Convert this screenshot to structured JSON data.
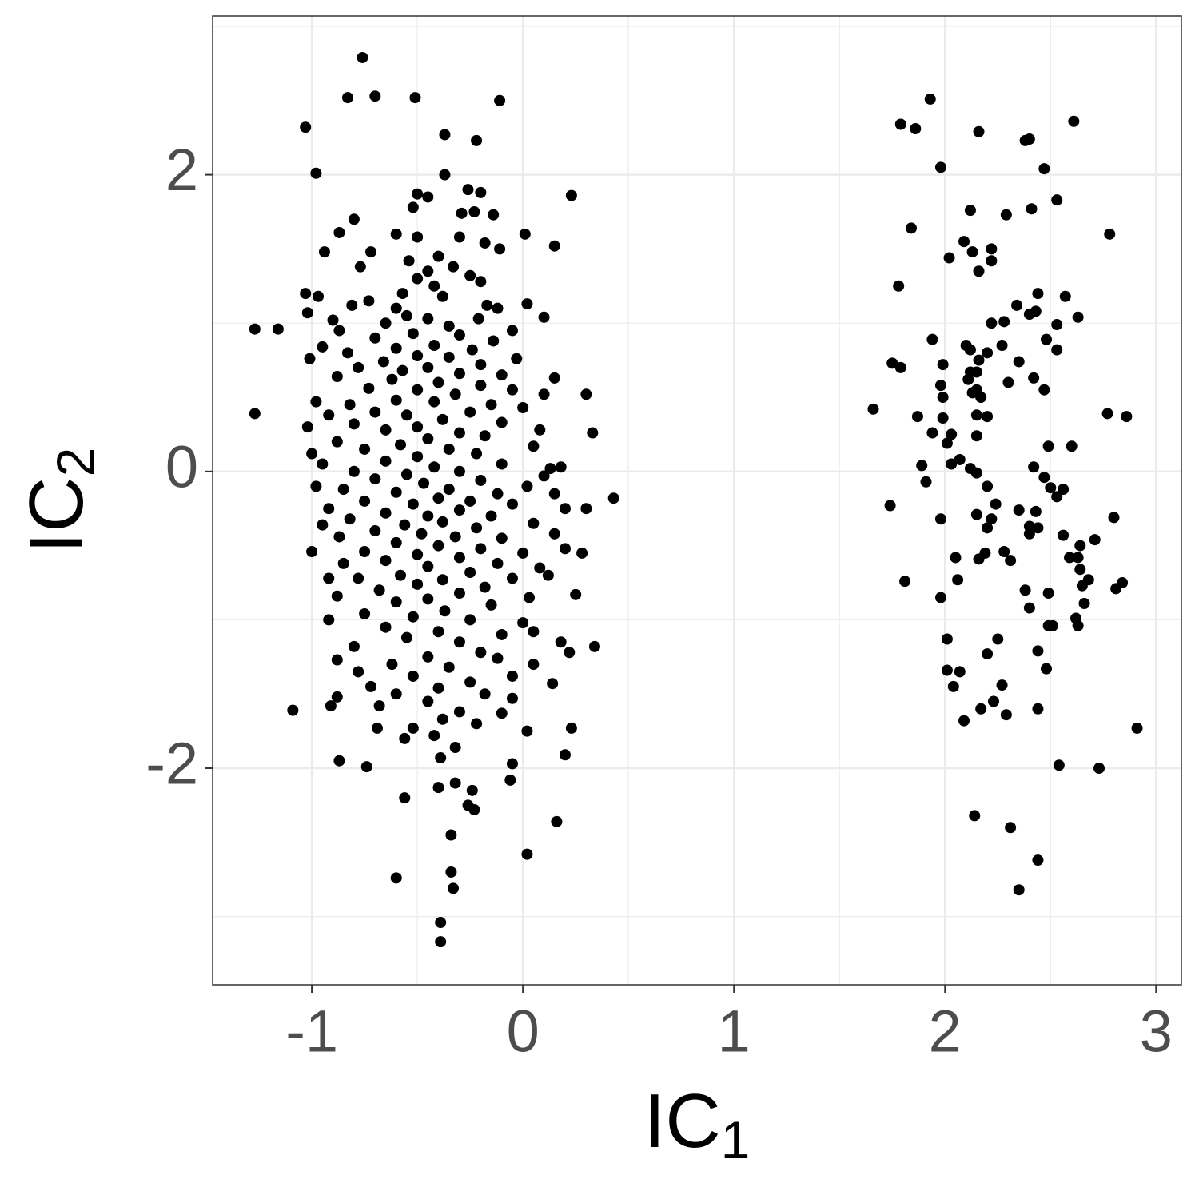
{
  "chart_data": {
    "type": "scatter",
    "xlabel": {
      "text": "IC",
      "sub": "1"
    },
    "ylabel": {
      "text": "IC",
      "sub": "2"
    },
    "xlim": [
      -1.47,
      3.12
    ],
    "ylim": [
      -3.46,
      3.07
    ],
    "xticks": [
      -1,
      0,
      1,
      2,
      3
    ],
    "yticks": [
      -2,
      0,
      2
    ],
    "x_minor_grid": [
      -0.5,
      0.5,
      1.5,
      2.5
    ],
    "y_minor_grid": [
      -3,
      -1,
      1,
      3
    ],
    "grid": true,
    "color": "#000000",
    "x": [
      -1.27,
      -1.16,
      -1.27,
      -1.09,
      -1.03,
      -0.98,
      -0.76,
      -0.83,
      -0.7,
      -0.51,
      -0.11,
      -0.37,
      -0.22,
      0.23,
      0.43,
      0.33,
      0.34,
      0.3,
      0.16,
      0.02,
      -0.6,
      -0.34,
      -0.33,
      -0.39,
      -0.39,
      -0.34,
      -0.56,
      -0.87,
      -0.74,
      0.2,
      0.23,
      -0.23,
      -0.06,
      -0.37,
      -0.26,
      -0.2,
      -0.5,
      -0.45,
      -0.52,
      -0.14,
      -0.29,
      -0.8,
      -0.23,
      0.01,
      -0.87,
      -0.5,
      -0.6,
      -0.3,
      -0.18,
      -0.11,
      -0.72,
      0.15,
      -0.94,
      -0.4,
      -0.54,
      -0.77,
      -0.33,
      -0.45,
      -0.25,
      -0.5,
      -0.2,
      -0.42,
      -1.03,
      -0.97,
      -0.57,
      -0.38,
      0.02,
      -0.73,
      -0.81,
      -0.6,
      -0.17,
      -0.12,
      -1.02,
      -0.9,
      -0.55,
      -0.45,
      -0.21,
      0.1,
      -0.65,
      -0.35,
      -0.05,
      -0.87,
      -0.52,
      -0.3,
      -0.7,
      -0.14,
      -0.42,
      -0.95,
      -0.6,
      -0.24,
      -0.83,
      -0.5,
      -0.35,
      -1.01,
      -0.03,
      -0.66,
      -0.2,
      -0.78,
      -0.45,
      -0.57,
      -0.3,
      -0.1,
      -0.88,
      -0.62,
      0.15,
      -0.4,
      -0.2,
      -0.73,
      -0.5,
      -0.05,
      0.1,
      -0.32,
      -0.98,
      -0.82,
      -0.6,
      -0.42,
      -0.15,
      0.0,
      -0.7,
      -0.25,
      -0.55,
      -0.92,
      -0.38,
      -0.1,
      -0.8,
      -0.5,
      -1.02,
      0.08,
      -0.65,
      -0.3,
      -0.18,
      -0.45,
      -0.88,
      -0.58,
      0.05,
      -0.75,
      -0.35,
      -1.0,
      -0.22,
      -0.5,
      -0.95,
      -0.65,
      -0.1,
      0.13,
      0.18,
      -0.42,
      -0.8,
      -0.3,
      -0.55,
      0.1,
      -0.7,
      -0.2,
      -0.47,
      -0.98,
      0.02,
      -0.85,
      -0.35,
      -0.6,
      -0.12,
      0.15,
      -0.4,
      -0.75,
      -0.25,
      -0.52,
      -0.92,
      -0.05,
      0.2,
      -0.3,
      -0.65,
      -0.45,
      -0.15,
      -0.82,
      0.3,
      -0.38,
      -0.56,
      0.05,
      -0.95,
      -0.22,
      -0.7,
      -0.48,
      -0.32,
      0.15,
      -0.1,
      -0.87,
      -0.6,
      -0.4,
      -0.2,
      -0.75,
      0.0,
      -1.0,
      -0.5,
      0.2,
      0.28,
      -0.3,
      -0.65,
      -0.12,
      -0.85,
      -0.45,
      0.08,
      -0.25,
      -0.58,
      -0.78,
      -0.38,
      -0.92,
      -0.05,
      0.12,
      -0.5,
      -0.18,
      -0.68,
      -0.3,
      0.25,
      -0.88,
      -0.45,
      -0.6,
      0.03,
      -0.15,
      -0.37,
      -0.75,
      -0.52,
      -0.92,
      -0.25,
      0.0,
      -0.65,
      -0.4,
      -0.1,
      0.05,
      -0.55,
      0.18,
      -0.3,
      -0.8,
      -0.2,
      0.22,
      -0.45,
      -0.12,
      -0.88,
      -0.62,
      0.05,
      -0.35,
      -0.78,
      -0.05,
      -0.52,
      -0.25,
      0.14,
      -0.72,
      -0.4,
      -0.6,
      -0.18,
      -0.88,
      -0.05,
      -0.45,
      -0.68,
      -0.91,
      -0.3,
      -0.1,
      -0.38,
      -0.22,
      -0.52,
      -0.69,
      0.02,
      -0.56,
      -0.42,
      -0.32,
      -0.39,
      -0.05,
      -0.4,
      -0.32,
      -0.24,
      -0.26,
      1.93,
      1.79,
      1.86,
      2.16,
      2.61,
      2.38,
      2.4,
      1.98,
      2.47,
      2.53,
      2.41,
      2.12,
      2.29,
      1.84,
      2.78,
      2.09,
      2.13,
      2.22,
      2.02,
      2.22,
      2.16,
      1.78,
      2.44,
      2.57,
      2.34,
      2.4,
      2.43,
      2.63,
      2.22,
      2.28,
      2.53,
      1.94,
      2.48,
      2.1,
      2.12,
      2.53,
      2.27,
      2.2,
      2.16,
      1.75,
      2.35,
      1.79,
      1.99,
      2.12,
      2.15,
      2.11,
      2.3,
      2.42,
      1.98,
      2.15,
      2.47,
      2.13,
      1.99,
      2.17,
      1.66,
      2.77,
      2.86,
      1.87,
      2.15,
      2.2,
      1.99,
      1.94,
      2.03,
      2.15,
      2.01,
      2.49,
      2.6,
      2.07,
      2.03,
      2.12,
      1.89,
      2.42,
      2.15,
      2.47,
      1.91,
      2.5,
      2.56,
      2.53,
      2.2,
      1.74,
      2.24,
      2.35,
      2.43,
      2.15,
      2.22,
      1.98,
      2.2,
      2.4,
      2.44,
      2.4,
      2.56,
      2.71,
      2.64,
      2.8,
      2.28,
      2.19,
      2.16,
      2.05,
      2.31,
      2.59,
      2.63,
      2.64,
      2.68,
      2.65,
      2.84,
      2.81,
      2.06,
      1.81,
      2.38,
      2.49,
      1.98,
      2.66,
      2.4,
      2.62,
      2.49,
      2.51,
      2.63,
      2.01,
      2.25,
      2.44,
      2.2,
      2.48,
      2.01,
      2.07,
      2.04,
      2.27,
      2.23,
      2.17,
      2.44,
      2.29,
      2.09,
      2.91,
      2.54,
      2.73,
      2.14,
      2.31,
      2.44,
      2.35
    ],
    "values": [
      0.96,
      0.96,
      0.39,
      -1.61,
      2.32,
      2.01,
      2.79,
      2.52,
      2.53,
      2.52,
      2.5,
      2.27,
      2.23,
      1.86,
      -0.18,
      0.26,
      -1.18,
      0.52,
      -2.36,
      -2.58,
      -2.74,
      -2.7,
      -2.81,
      -3.04,
      -3.17,
      -2.45,
      -2.2,
      -1.95,
      -1.99,
      -1.91,
      -1.73,
      -2.28,
      -2.08,
      2.0,
      1.9,
      1.88,
      1.87,
      1.85,
      1.78,
      1.73,
      1.74,
      1.7,
      1.75,
      1.6,
      1.61,
      1.58,
      1.6,
      1.58,
      1.54,
      1.5,
      1.48,
      1.52,
      1.48,
      1.45,
      1.42,
      1.38,
      1.38,
      1.35,
      1.32,
      1.3,
      1.28,
      1.25,
      1.2,
      1.18,
      1.2,
      1.18,
      1.13,
      1.15,
      1.12,
      1.1,
      1.12,
      1.1,
      1.07,
      1.02,
      1.05,
      1.03,
      1.03,
      1.04,
      1.0,
      0.98,
      0.95,
      0.95,
      0.93,
      0.92,
      0.9,
      0.88,
      0.85,
      0.84,
      0.83,
      0.82,
      0.8,
      0.78,
      0.77,
      0.76,
      0.76,
      0.74,
      0.72,
      0.7,
      0.7,
      0.68,
      0.66,
      0.65,
      0.64,
      0.62,
      0.63,
      0.6,
      0.58,
      0.56,
      0.55,
      0.55,
      0.52,
      0.52,
      0.47,
      0.45,
      0.48,
      0.47,
      0.45,
      0.43,
      0.4,
      0.4,
      0.38,
      0.38,
      0.35,
      0.33,
      0.32,
      0.3,
      0.3,
      0.28,
      0.28,
      0.26,
      0.24,
      0.22,
      0.2,
      0.18,
      0.17,
      0.15,
      0.15,
      0.12,
      0.12,
      0.1,
      0.05,
      0.07,
      0.05,
      0.02,
      0.03,
      0.03,
      0.0,
      0.0,
      -0.02,
      -0.03,
      -0.05,
      -0.06,
      -0.08,
      -0.1,
      -0.1,
      -0.12,
      -0.12,
      -0.14,
      -0.15,
      -0.15,
      -0.18,
      -0.2,
      -0.2,
      -0.22,
      -0.25,
      -0.22,
      -0.25,
      -0.26,
      -0.28,
      -0.3,
      -0.3,
      -0.32,
      -0.25,
      -0.34,
      -0.36,
      -0.35,
      -0.36,
      -0.38,
      -0.4,
      -0.42,
      -0.44,
      -0.42,
      -0.45,
      -0.44,
      -0.48,
      -0.5,
      -0.52,
      -0.54,
      -0.55,
      -0.54,
      -0.56,
      -0.52,
      -0.55,
      -0.58,
      -0.6,
      -0.62,
      -0.62,
      -0.64,
      -0.65,
      -0.68,
      -0.7,
      -0.72,
      -0.73,
      -0.72,
      -0.72,
      -0.7,
      -0.76,
      -0.78,
      -0.8,
      -0.82,
      -0.83,
      -0.84,
      -0.86,
      -0.88,
      -0.85,
      -0.9,
      -0.94,
      -0.96,
      -0.98,
      -1.0,
      -1.0,
      -1.02,
      -1.05,
      -1.08,
      -1.1,
      -1.08,
      -1.12,
      -1.15,
      -1.15,
      -1.18,
      -1.22,
      -1.22,
      -1.25,
      -1.26,
      -1.27,
      -1.3,
      -1.3,
      -1.32,
      -1.35,
      -1.38,
      -1.38,
      -1.42,
      -1.43,
      -1.45,
      -1.46,
      -1.5,
      -1.5,
      -1.52,
      -1.53,
      -1.55,
      -1.58,
      -1.58,
      -1.62,
      -1.63,
      -1.67,
      -1.7,
      -1.73,
      -1.73,
      -1.75,
      -1.8,
      -1.78,
      -1.86,
      -1.93,
      -1.97,
      -2.13,
      -2.1,
      -2.15,
      -2.25,
      2.51,
      2.34,
      2.31,
      2.29,
      2.36,
      2.23,
      2.24,
      2.05,
      2.04,
      1.83,
      1.77,
      1.76,
      1.73,
      1.64,
      1.6,
      1.55,
      1.48,
      1.5,
      1.44,
      1.42,
      1.35,
      1.25,
      1.2,
      1.18,
      1.12,
      1.06,
      1.08,
      1.04,
      1.0,
      1.01,
      0.99,
      0.89,
      0.89,
      0.85,
      0.82,
      0.82,
      0.85,
      0.8,
      0.75,
      0.73,
      0.74,
      0.7,
      0.72,
      0.67,
      0.67,
      0.62,
      0.6,
      0.63,
      0.58,
      0.55,
      0.55,
      0.53,
      0.5,
      0.5,
      0.42,
      0.39,
      0.37,
      0.37,
      0.38,
      0.37,
      0.36,
      0.26,
      0.25,
      0.24,
      0.19,
      0.17,
      0.17,
      0.08,
      0.05,
      0.02,
      0.04,
      0.03,
      -0.01,
      -0.04,
      -0.07,
      -0.11,
      -0.12,
      -0.17,
      -0.1,
      -0.23,
      -0.22,
      -0.26,
      -0.27,
      -0.29,
      -0.32,
      -0.32,
      -0.38,
      -0.37,
      -0.38,
      -0.42,
      -0.43,
      -0.46,
      -0.5,
      -0.31,
      -0.54,
      -0.55,
      -0.59,
      -0.58,
      -0.6,
      -0.58,
      -0.58,
      -0.66,
      -0.73,
      -0.77,
      -0.75,
      -0.79,
      -0.73,
      -0.74,
      -0.8,
      -0.82,
      -0.85,
      -0.89,
      -0.92,
      -0.99,
      -1.04,
      -1.04,
      -1.04,
      -1.13,
      -1.13,
      -1.21,
      -1.23,
      -1.33,
      -1.34,
      -1.35,
      -1.45,
      -1.44,
      -1.55,
      -1.6,
      -1.6,
      -1.64,
      -1.68,
      -1.73,
      -1.98,
      -2.0,
      -2.32,
      -2.4,
      -2.62,
      -2.82
    ]
  }
}
